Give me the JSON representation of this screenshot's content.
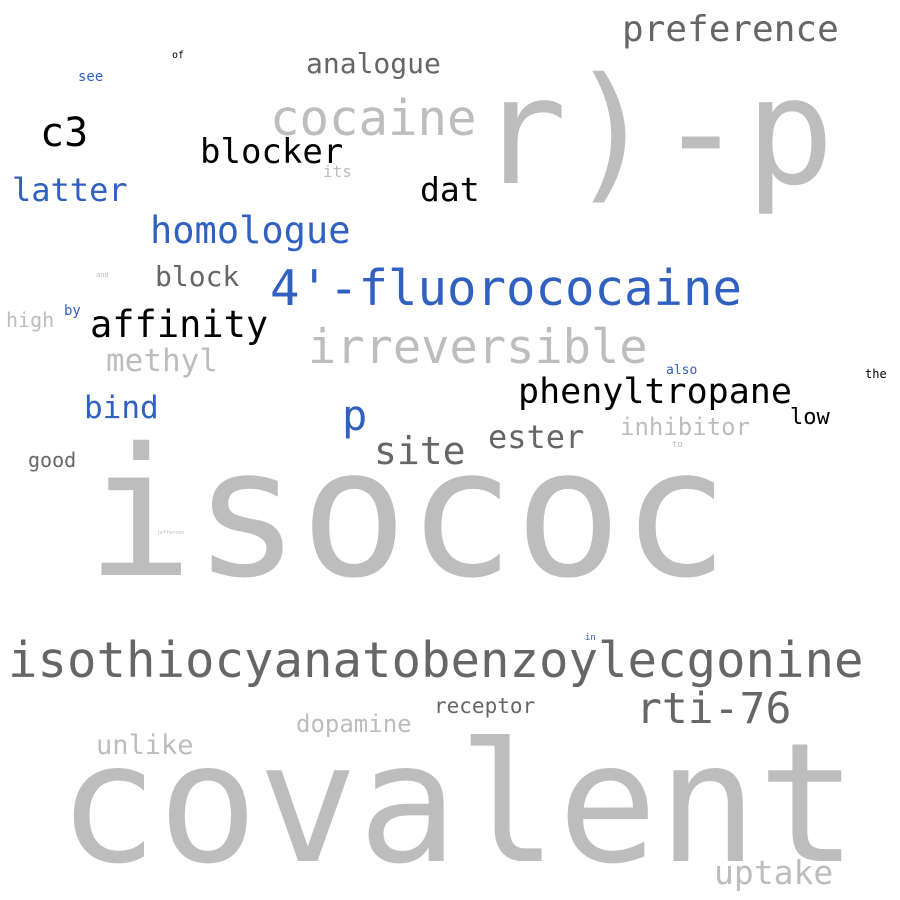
{
  "colors": {
    "gray": "#bdbdbd",
    "dark": "#666666",
    "black": "#000000",
    "blue": "#3060c0"
  },
  "words": [
    {
      "id": "isococ",
      "text": "isococ",
      "color": "gray"
    },
    {
      "id": "covalent",
      "text": "covalent",
      "color": "gray"
    },
    {
      "id": "r-p",
      "text": "r)-p",
      "color": "gray"
    },
    {
      "id": "isothiocyanatobenzoylecgonine",
      "text": "isothiocyanatobenzoylecgonine",
      "color": "dark"
    },
    {
      "id": "4-fluorococaine",
      "text": "4'-fluorococaine",
      "color": "blue"
    },
    {
      "id": "irreversible",
      "text": "irreversible",
      "color": "gray"
    },
    {
      "id": "cocaine",
      "text": "cocaine",
      "color": "gray"
    },
    {
      "id": "rti-76",
      "text": "rti-76",
      "color": "dark"
    },
    {
      "id": "phenyltropane",
      "text": "phenyltropane",
      "color": "black"
    },
    {
      "id": "preference",
      "text": "preference",
      "color": "dark"
    },
    {
      "id": "homologue",
      "text": "homologue",
      "color": "blue"
    },
    {
      "id": "affinity",
      "text": "affinity",
      "color": "black"
    },
    {
      "id": "p",
      "text": "p",
      "color": "blue"
    },
    {
      "id": "blocker",
      "text": "blocker",
      "color": "black"
    },
    {
      "id": "c3",
      "text": "c3",
      "color": "black"
    },
    {
      "id": "site",
      "text": "site",
      "color": "dark"
    },
    {
      "id": "ester",
      "text": "ester",
      "color": "dark"
    },
    {
      "id": "uptake",
      "text": "uptake",
      "color": "gray"
    },
    {
      "id": "latter",
      "text": "latter",
      "color": "blue"
    },
    {
      "id": "dat",
      "text": "dat",
      "color": "black"
    },
    {
      "id": "methyl",
      "text": "methyl",
      "color": "gray"
    },
    {
      "id": "analogue",
      "text": "analogue",
      "color": "dark"
    },
    {
      "id": "bind",
      "text": "bind",
      "color": "blue"
    },
    {
      "id": "block",
      "text": "block",
      "color": "dark"
    },
    {
      "id": "unlike",
      "text": "unlike",
      "color": "gray"
    },
    {
      "id": "dopamine",
      "text": "dopamine",
      "color": "gray"
    },
    {
      "id": "inhibitor",
      "text": "inhibitor",
      "color": "gray"
    },
    {
      "id": "receptor",
      "text": "receptor",
      "color": "dark"
    },
    {
      "id": "low",
      "text": "low",
      "color": "black"
    },
    {
      "id": "good",
      "text": "good",
      "color": "dark"
    },
    {
      "id": "high",
      "text": "high",
      "color": "gray"
    },
    {
      "id": "its",
      "text": "its",
      "color": "gray"
    },
    {
      "id": "see",
      "text": "see",
      "color": "blue"
    },
    {
      "id": "also",
      "text": "also",
      "color": "blue"
    },
    {
      "id": "by",
      "text": "by",
      "color": "blue"
    },
    {
      "id": "the",
      "text": "the",
      "color": "black"
    },
    {
      "id": "of",
      "text": "of",
      "color": "black"
    },
    {
      "id": "in",
      "text": "in",
      "color": "blue"
    },
    {
      "id": "to",
      "text": "to",
      "color": "gray"
    },
    {
      "id": "and",
      "text": "and",
      "color": "gray"
    },
    {
      "id": "jefferson",
      "text": "jefferson",
      "color": "gray"
    }
  ]
}
